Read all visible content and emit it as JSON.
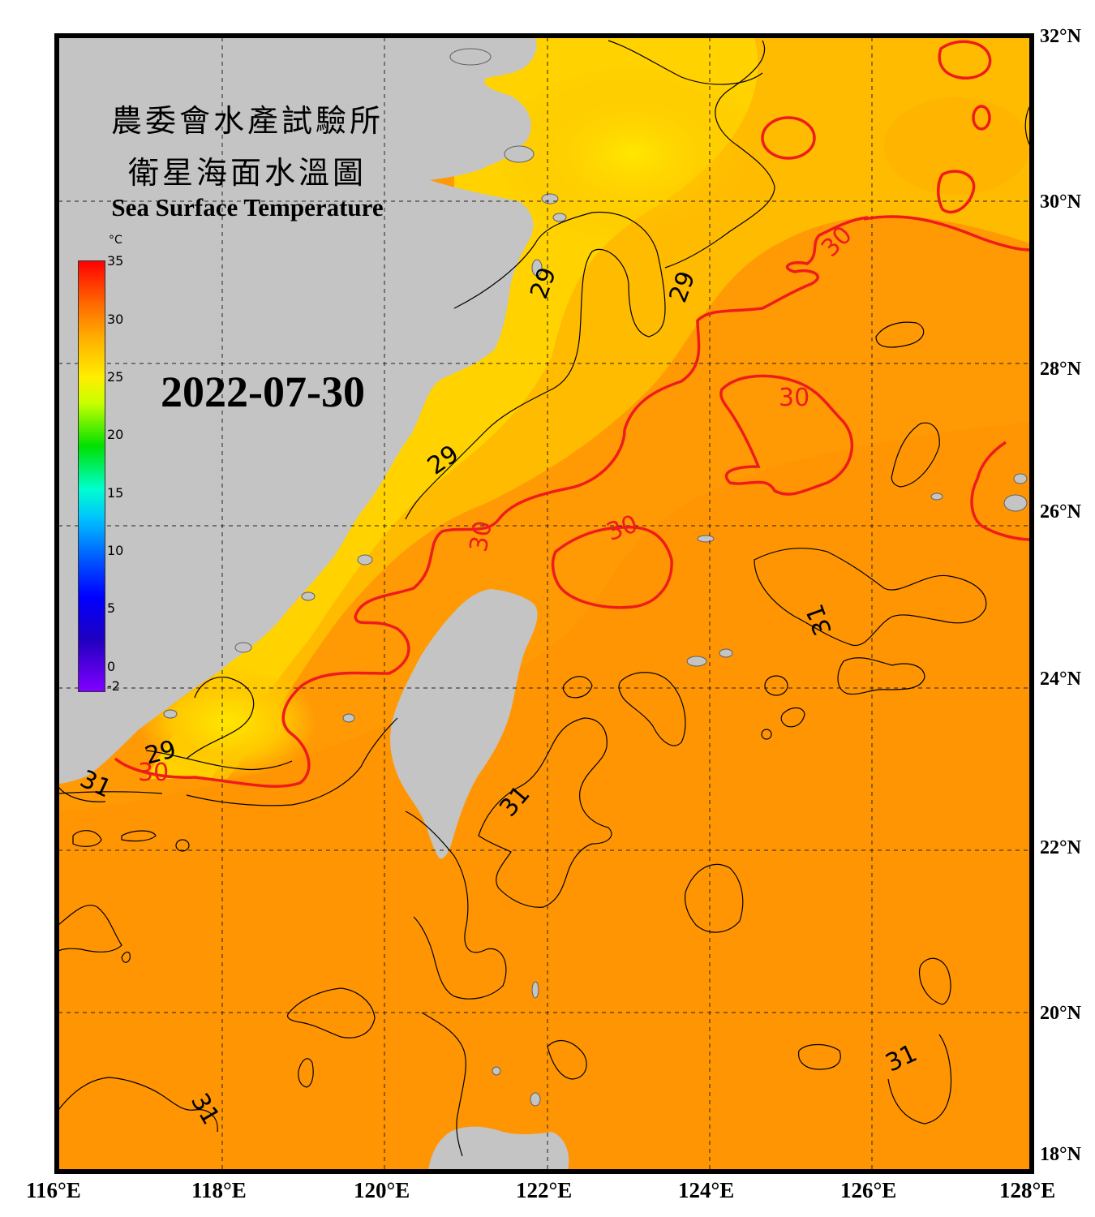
{
  "title_zh_line1": "農委會水產試驗所",
  "title_zh_line2": "衛星海面水溫圖",
  "title_en": "Sea Surface Temperature",
  "date": "2022-07-30",
  "colorbar": {
    "unit": "°C",
    "min": -2,
    "max": 35,
    "ticks": [
      "35",
      "30",
      "25",
      "20",
      "15",
      "10",
      "5",
      "0",
      "-2"
    ]
  },
  "lon_labels": [
    "116°E",
    "118°E",
    "120°E",
    "122°E",
    "124°E",
    "126°E",
    "128°E"
  ],
  "lat_labels": [
    "32°N",
    "30°N",
    "28°N",
    "26°N",
    "24°N",
    "22°N",
    "20°N",
    "18°N"
  ],
  "contour_labels": [
    "29",
    "29",
    "29",
    "29",
    "30",
    "30",
    "30",
    "30",
    "30",
    "30",
    "31",
    "31",
    "31",
    "31",
    "31"
  ],
  "colors": {
    "land": "#c4c4c4",
    "sea_warm": "#ff9a05",
    "sea_cool": "#ffd000",
    "contour_30": "#ee1c1c",
    "contour_other": "#000000"
  }
}
